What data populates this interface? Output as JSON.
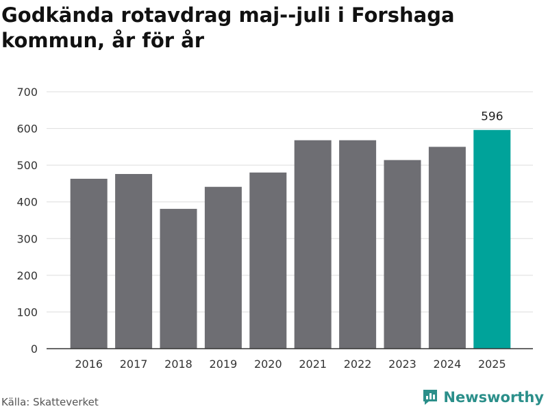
{
  "title": "Godkända rotavdrag maj--juli i Forshaga kommun, år för år",
  "source": "Källa: Skatteverket",
  "brand": {
    "name": "Newsworthy",
    "icon": "newsworthy-logo-icon"
  },
  "colors": {
    "bar": "#6e6e73",
    "highlight": "#00a39a",
    "grid": "#dddddd",
    "axis": "#333333",
    "brand": "#2b8f8a"
  },
  "chart_data": {
    "type": "bar",
    "categories": [
      "2016",
      "2017",
      "2018",
      "2019",
      "2020",
      "2021",
      "2022",
      "2023",
      "2024",
      "2025"
    ],
    "values": [
      463,
      476,
      381,
      441,
      480,
      568,
      568,
      514,
      550,
      596
    ],
    "highlight_index": 9,
    "data_labels": [
      null,
      null,
      null,
      null,
      null,
      null,
      null,
      null,
      null,
      "596"
    ],
    "yticks": [
      0,
      100,
      200,
      300,
      400,
      500,
      600,
      700
    ],
    "ylim": [
      0,
      700
    ],
    "xlabel": "",
    "ylabel": "",
    "grid": true,
    "legend": false
  }
}
